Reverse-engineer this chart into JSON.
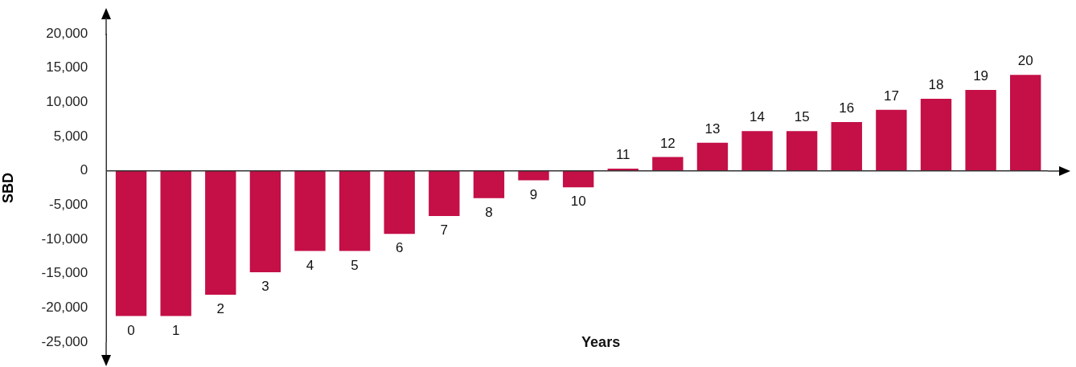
{
  "chart_data": {
    "type": "bar",
    "xlabel": "Years",
    "ylabel": "SBD",
    "categories": [
      "0",
      "1",
      "2",
      "3",
      "4",
      "5",
      "6",
      "7",
      "8",
      "9",
      "10",
      "11",
      "12",
      "13",
      "14",
      "15",
      "16",
      "17",
      "18",
      "19",
      "20"
    ],
    "values": [
      -21200,
      -21200,
      -18100,
      -14800,
      -11700,
      -11700,
      -9200,
      -6600,
      -4000,
      -1400,
      -2400,
      300,
      2000,
      4100,
      5800,
      5800,
      7100,
      8900,
      10500,
      11800,
      14000
    ],
    "color": "#c40f47",
    "ylim": [
      -25000,
      20000
    ],
    "yticks": [
      {
        "value": -25000,
        "label": "-25,000"
      },
      {
        "value": -20000,
        "label": "-20,000"
      },
      {
        "value": -15000,
        "label": "-15,000"
      },
      {
        "value": -10000,
        "label": "-10,000"
      },
      {
        "value": -5000,
        "label": "-5,000"
      },
      0,
      {
        "value": 5000,
        "label": "5,000"
      },
      {
        "value": 10000,
        "label": "10,000"
      },
      {
        "value": 15000,
        "label": "15,000"
      },
      {
        "value": 20000,
        "label": "20,000"
      }
    ],
    "ref_lines": [
      {
        "axis": "y",
        "value": 0,
        "color": "#333333"
      }
    ],
    "grid": false
  }
}
